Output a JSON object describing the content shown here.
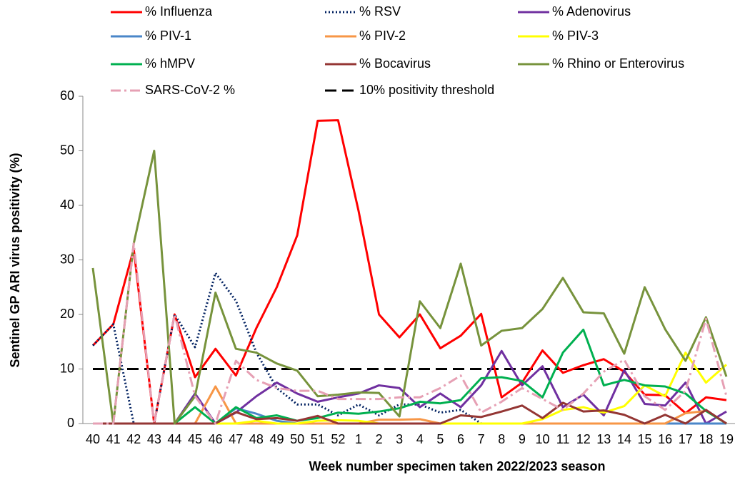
{
  "chart_data": {
    "type": "line",
    "y_label": "Sentinel GP ARI virus positivity (%)",
    "x_label": "Week number specimen taken 2022/2023 season",
    "categories": [
      "40",
      "41",
      "42",
      "43",
      "44",
      "45",
      "46",
      "47",
      "48",
      "49",
      "50",
      "51",
      "52",
      "1",
      "2",
      "3",
      "4",
      "5",
      "6",
      "7",
      "8",
      "9",
      "10",
      "11",
      "12",
      "13",
      "14",
      "15",
      "16",
      "17",
      "18",
      "19"
    ],
    "ylim": [
      0,
      60
    ],
    "yticks": [
      0,
      10,
      20,
      30,
      40,
      50,
      60
    ],
    "series": [
      {
        "name": "% Influenza",
        "color": "#ff0000",
        "dash": "solid",
        "values": [
          14.3,
          18.2,
          32,
          0,
          20,
          8.5,
          13.7,
          8.8,
          17.5,
          25,
          34.5,
          55.5,
          55.6,
          39,
          20,
          15.8,
          20,
          13.8,
          16.1,
          20.1,
          4.8,
          7.5,
          13.4,
          9.3,
          10.7,
          11.8,
          9.5,
          5.3,
          5.2,
          1.9,
          4.8,
          4.3
        ]
      },
      {
        "name": "% RSV",
        "color": "#002060",
        "dash": "dot",
        "values": [
          14.3,
          18.2,
          0,
          0,
          20,
          14,
          27.6,
          22.5,
          13,
          6.5,
          3.5,
          3.5,
          1.5,
          3.5,
          1.5,
          3.5,
          3.5,
          2,
          2.5,
          0,
          0,
          0,
          0,
          0,
          0,
          0,
          0,
          0,
          0,
          0,
          0,
          0
        ]
      },
      {
        "name": "% Adenovirus",
        "color": "#7030a0",
        "dash": "solid",
        "values": [
          0,
          0,
          0,
          0,
          0,
          5.5,
          0,
          2,
          5,
          7.5,
          5.5,
          4,
          4.8,
          5.5,
          7,
          6.5,
          3,
          5.5,
          3,
          7,
          13.3,
          7,
          10.5,
          3,
          5.3,
          1.5,
          9.8,
          3.6,
          3.3,
          7.5,
          0,
          2.2
        ]
      },
      {
        "name": "% PIV-1",
        "color": "#4a86c8",
        "dash": "solid",
        "values": [
          0,
          0,
          0,
          0,
          0,
          0,
          0,
          2.8,
          1.8,
          0.5,
          0,
          0,
          0,
          0,
          0,
          0,
          0,
          0,
          0,
          0,
          0,
          0,
          0,
          0,
          0,
          0,
          0,
          0,
          0,
          0,
          0,
          0
        ]
      },
      {
        "name": "% PIV-2",
        "color": "#f79646",
        "dash": "solid",
        "values": [
          0,
          0,
          0,
          0,
          0,
          0,
          6.8,
          0,
          0,
          0,
          0,
          0,
          0,
          0,
          0.7,
          0.7,
          0.8,
          0,
          0,
          0,
          0,
          0,
          0,
          0,
          0,
          0,
          0,
          0,
          0,
          1.9,
          2.3,
          0
        ]
      },
      {
        "name": "% PIV-3",
        "color": "#ffff00",
        "dash": "solid",
        "values": [
          0,
          0,
          0,
          0,
          0,
          0,
          0,
          0,
          0.5,
          0,
          0,
          0.5,
          0.6,
          0.5,
          0,
          0,
          0,
          0,
          0,
          0,
          0,
          0,
          0.8,
          2.5,
          3,
          2,
          3.2,
          7,
          5,
          13,
          7.5,
          10.8
        ]
      },
      {
        "name": "% hMPV",
        "color": "#00b050",
        "dash": "solid",
        "values": [
          0,
          0,
          0,
          0,
          0,
          3,
          0,
          3,
          1,
          1.5,
          0.5,
          1,
          2,
          1.8,
          2.2,
          2.8,
          4,
          3.7,
          4.3,
          8.3,
          8.5,
          7.8,
          4.8,
          13,
          17.2,
          7,
          8,
          7,
          6.8,
          5.5,
          2.3,
          0
        ]
      },
      {
        "name": "% Bocavirus",
        "color": "#943634",
        "dash": "solid",
        "values": [
          0,
          0,
          0,
          0,
          0,
          0,
          0,
          2.1,
          0.8,
          1,
          0.5,
          1.4,
          0,
          0,
          0,
          0,
          0,
          0,
          1.5,
          1.2,
          2.2,
          3.3,
          1,
          3.8,
          2.2,
          2.4,
          1.6,
          0,
          1.6,
          0,
          2.5,
          0
        ]
      },
      {
        "name": "% Rhino or Enterovirus",
        "color": "#77933c",
        "dash": "solid",
        "values": [
          28.5,
          0,
          33,
          50,
          0,
          5,
          24,
          13.7,
          13,
          11,
          9.7,
          5,
          5.3,
          5.7,
          5.6,
          1.3,
          22.4,
          17.5,
          29.3,
          14.3,
          17,
          17.5,
          21,
          26.7,
          20.4,
          20.2,
          12.8,
          25,
          17.3,
          11.5,
          19.5,
          8.6
        ]
      },
      {
        "name": "SARS-CoV-2 %",
        "color": "#e6a0b4",
        "dash": "dashdot",
        "values": [
          0,
          0,
          33,
          0,
          20,
          5,
          0,
          11.5,
          8,
          6.5,
          6,
          6,
          4.5,
          4.5,
          4.5,
          4.8,
          4.8,
          6.5,
          8.8,
          2,
          4,
          6.5,
          4.5,
          2.5,
          5.5,
          9.5,
          11.7,
          5,
          2.5,
          6,
          19.2,
          5
        ]
      }
    ],
    "threshold": {
      "name": "10% positivity threshold",
      "value": 10,
      "color": "#000000"
    }
  }
}
